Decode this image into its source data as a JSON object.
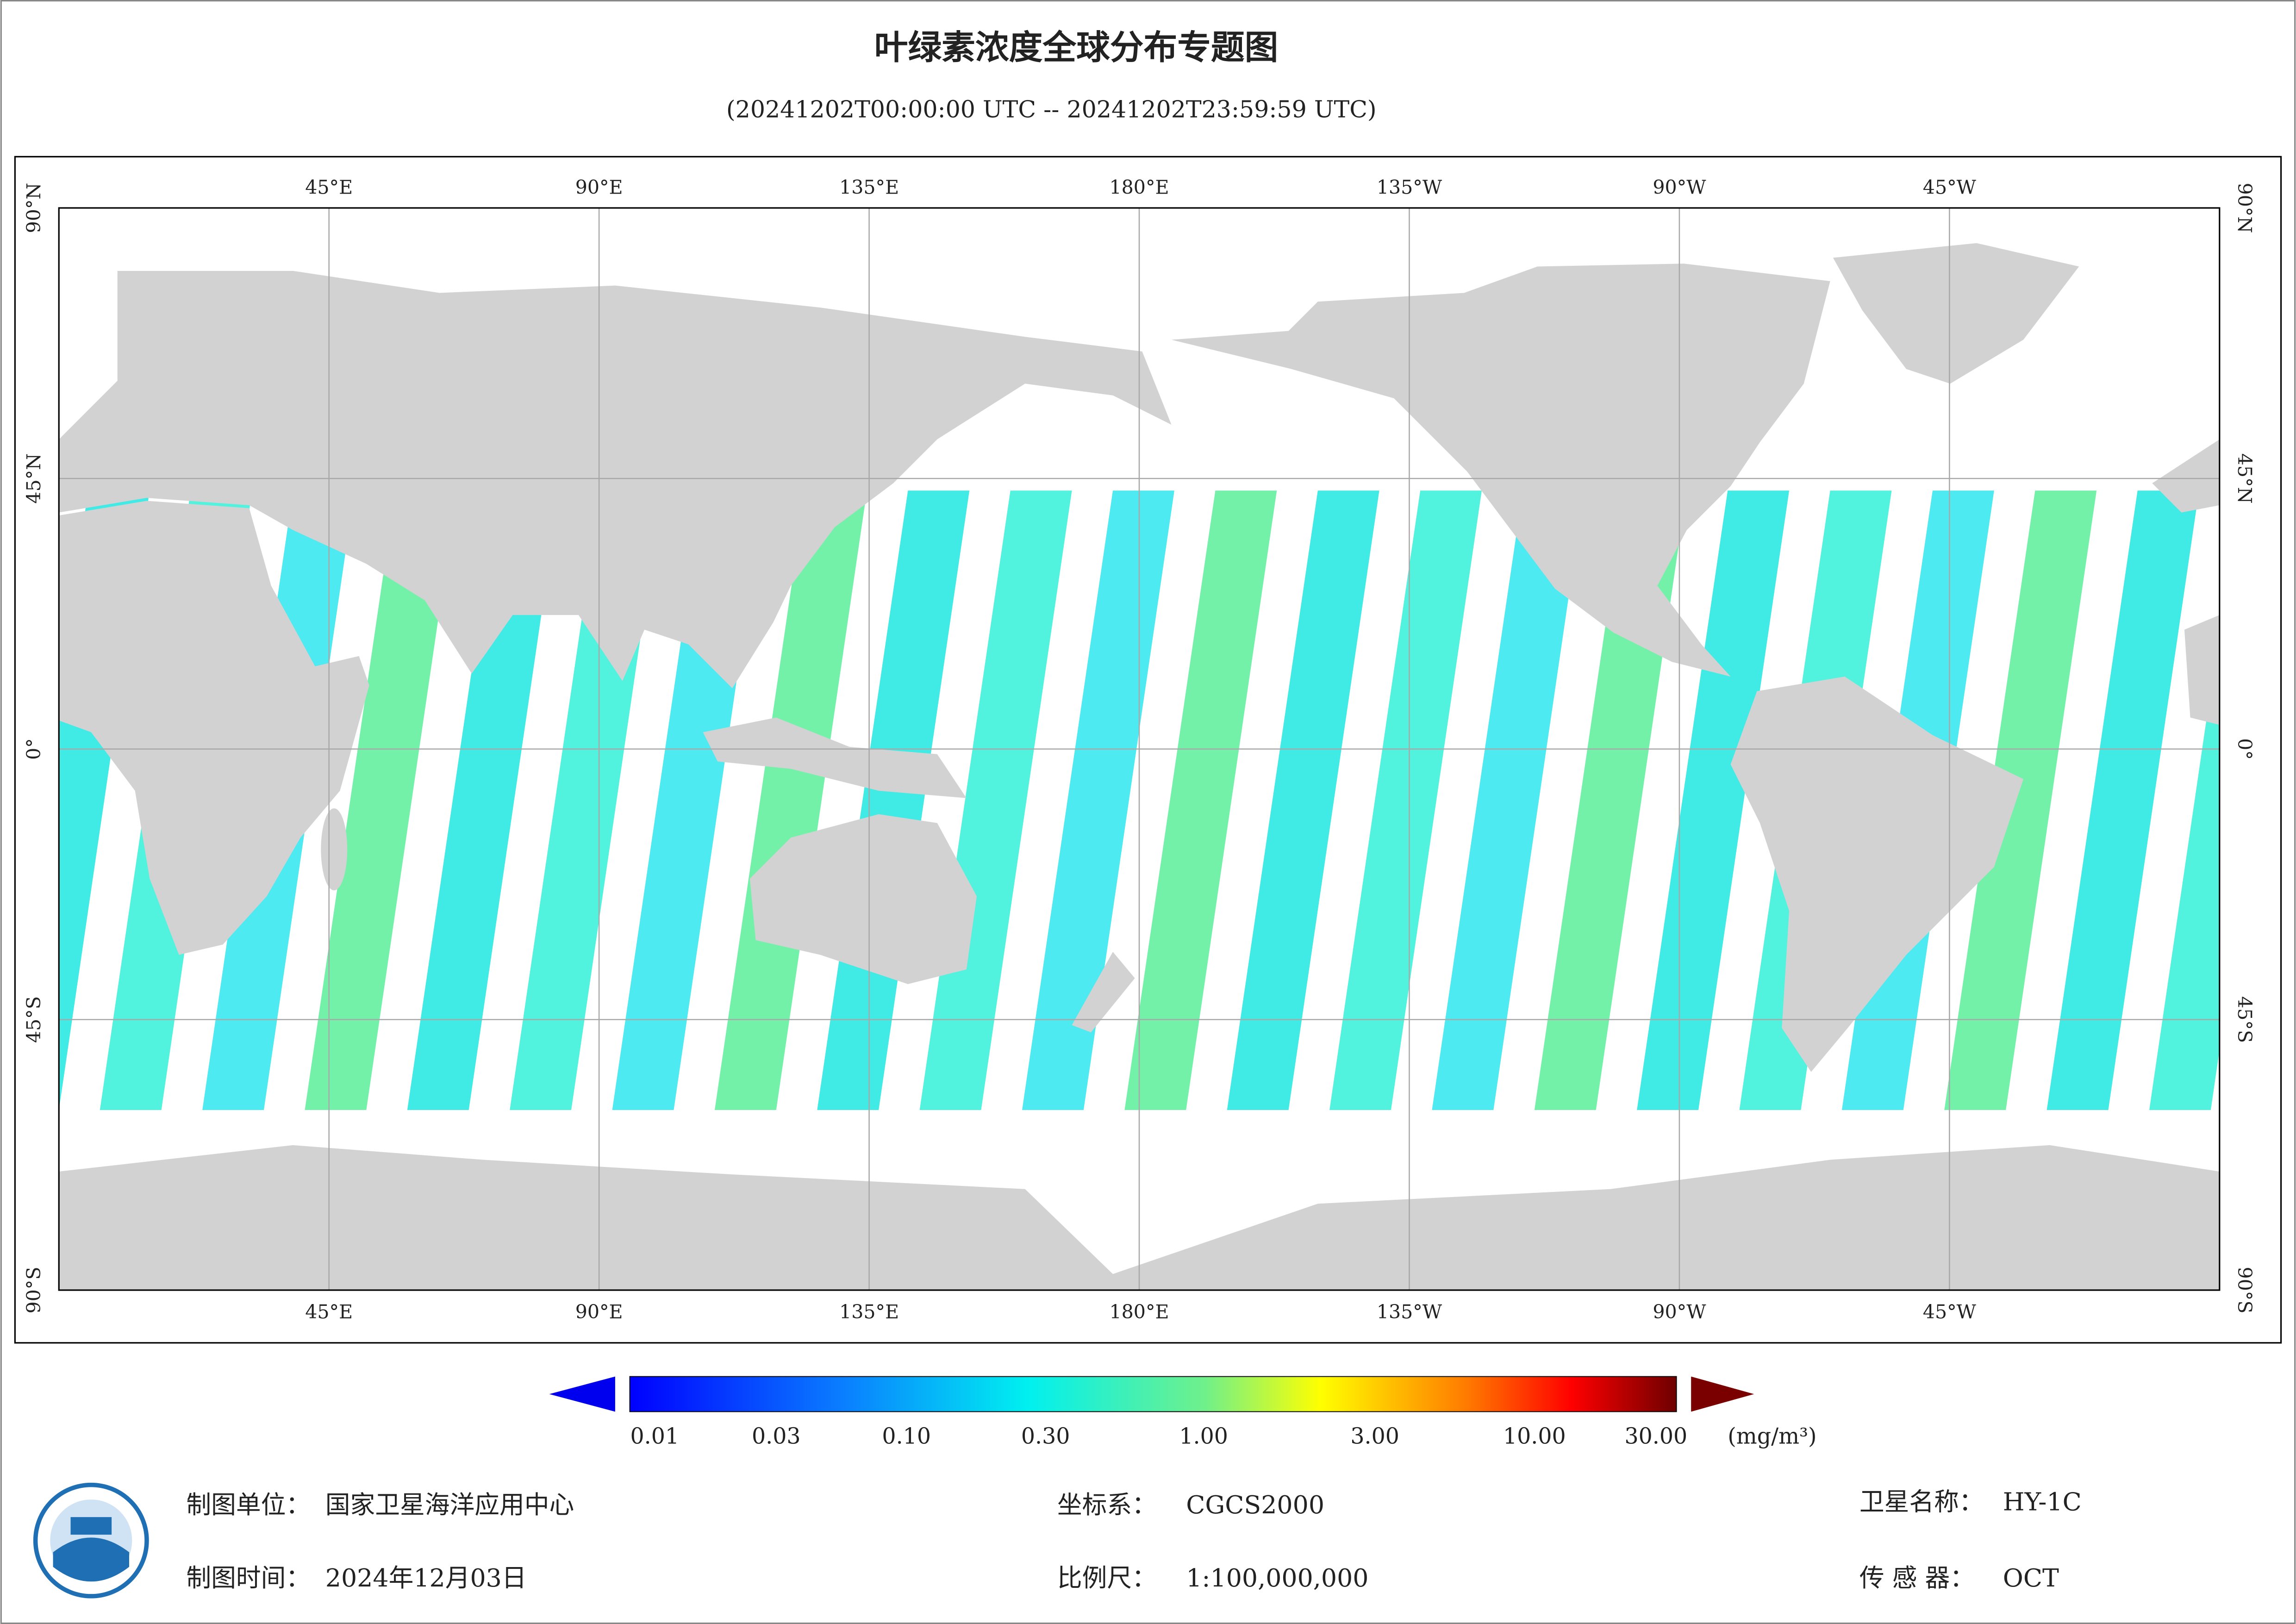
{
  "header": {
    "title": "叶绿素浓度全球分布专题图",
    "subtitle": "(20241202T00:00:00 UTC -- 20241202T23:59:59 UTC)"
  },
  "map": {
    "lon_labels": [
      "45°E",
      "90°E",
      "135°E",
      "180°E",
      "135°W",
      "90°W",
      "45°W"
    ],
    "lat_labels": [
      "90°N",
      "45°N",
      "0°",
      "45°S",
      "90°S"
    ]
  },
  "colorbar": {
    "labels": [
      "0.01",
      "0.03",
      "0.10",
      "0.30",
      "1.00",
      "3.00",
      "10.00",
      "30.00"
    ],
    "unit": "(mg/m³)"
  },
  "footer": {
    "unit_label": "制图单位：",
    "unit_value": "国家卫星海洋应用中心",
    "date_label": "制图时间：",
    "date_value": "2024年12月03日",
    "crs_label": "坐标系：",
    "crs_value": "CGCS2000",
    "scale_label": "比例尺：",
    "scale_value": "1:100,000,000",
    "sat_label": "卫星名称：",
    "sat_value": "HY-1C",
    "sensor_label": "传 感 器：",
    "sensor_value": "OCT"
  }
}
